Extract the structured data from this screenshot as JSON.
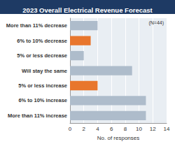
{
  "chart_data": {
    "type": "bar",
    "orientation": "horizontal",
    "title": "2023 Overall Electrical Revenue Forecast",
    "annotation": "(N=44)",
    "x_label": "No. of responses",
    "categories": [
      "More than 11% decrease",
      "6% to 10% decrease",
      "5% or less decrease",
      "Will stay the same",
      "5% or less increase",
      "6% to 10% increase",
      "More than 11% increase"
    ],
    "values": [
      4,
      3,
      2,
      9,
      4,
      11,
      11
    ],
    "colors": [
      "#aebccb",
      "#e8762d",
      "#aebccb",
      "#aebccb",
      "#e8762d",
      "#aebccb",
      "#aebccb"
    ],
    "xlim": [
      0,
      14
    ],
    "xticks": [
      0,
      2,
      4,
      6,
      8,
      10,
      12,
      14
    ],
    "grid": true
  }
}
